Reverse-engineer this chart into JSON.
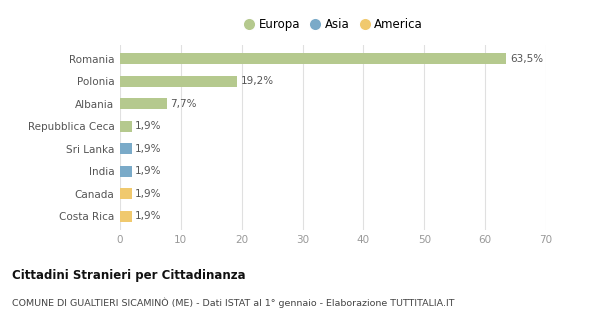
{
  "categories": [
    "Romania",
    "Polonia",
    "Albania",
    "Repubblica Ceca",
    "Sri Lanka",
    "India",
    "Canada",
    "Costa Rica"
  ],
  "values": [
    63.5,
    19.2,
    7.7,
    1.9,
    1.9,
    1.9,
    1.9,
    1.9
  ],
  "labels": [
    "63,5%",
    "19,2%",
    "7,7%",
    "1,9%",
    "1,9%",
    "1,9%",
    "1,9%",
    "1,9%"
  ],
  "colors": [
    "#b5c98e",
    "#b5c98e",
    "#b5c98e",
    "#b5c98e",
    "#7aaac8",
    "#7aaac8",
    "#f0c96e",
    "#f0c96e"
  ],
  "legend_labels": [
    "Europa",
    "Asia",
    "America"
  ],
  "legend_colors": [
    "#b5c98e",
    "#7aaac8",
    "#f0c96e"
  ],
  "xlim": [
    0,
    70
  ],
  "xticks": [
    0,
    10,
    20,
    30,
    40,
    50,
    60,
    70
  ],
  "title_main": "Cittadini Stranieri per Cittadinanza",
  "title_sub": "COMUNE DI GUALTIERI SICAMINÒ (ME) - Dati ISTAT al 1° gennaio - Elaborazione TUTTITALIA.IT",
  "bg_color": "#ffffff",
  "grid_color": "#e0e0e0",
  "bar_height": 0.5,
  "label_fontsize": 7.5,
  "tick_fontsize": 7.5,
  "legend_fontsize": 8.5
}
